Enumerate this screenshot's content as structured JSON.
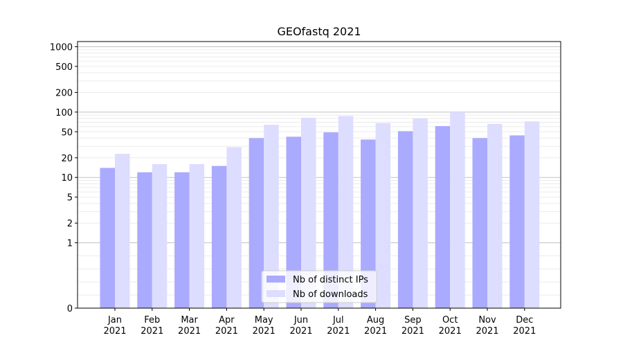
{
  "chart_data": {
    "type": "bar",
    "title": "GEOfastq 2021",
    "xlabel": "",
    "ylabel": "",
    "yscale": "symlog",
    "ylim": [
      0,
      1200
    ],
    "yticks": [
      {
        "value": 0,
        "label": "0"
      },
      {
        "value": 1,
        "label": "1"
      },
      {
        "value": 2,
        "label": "2"
      },
      {
        "value": 5,
        "label": "5"
      },
      {
        "value": 10,
        "label": "10"
      },
      {
        "value": 20,
        "label": "20"
      },
      {
        "value": 50,
        "label": "50"
      },
      {
        "value": 100,
        "label": "100"
      },
      {
        "value": 200,
        "label": "200"
      },
      {
        "value": 500,
        "label": "500"
      },
      {
        "value": 1000,
        "label": "1000"
      }
    ],
    "major_grid_values": [
      1,
      10,
      100,
      1000
    ],
    "categories": [
      {
        "month": "Jan",
        "year": "2021"
      },
      {
        "month": "Feb",
        "year": "2021"
      },
      {
        "month": "Mar",
        "year": "2021"
      },
      {
        "month": "Apr",
        "year": "2021"
      },
      {
        "month": "May",
        "year": "2021"
      },
      {
        "month": "Jun",
        "year": "2021"
      },
      {
        "month": "Jul",
        "year": "2021"
      },
      {
        "month": "Aug",
        "year": "2021"
      },
      {
        "month": "Sep",
        "year": "2021"
      },
      {
        "month": "Oct",
        "year": "2021"
      },
      {
        "month": "Nov",
        "year": "2021"
      },
      {
        "month": "Dec",
        "year": "2021"
      }
    ],
    "series": [
      {
        "name": "Nb of distinct IPs",
        "color": "#aaaaff",
        "values": [
          14,
          12,
          12,
          15,
          40,
          42,
          49,
          38,
          51,
          61,
          40,
          44
        ]
      },
      {
        "name": "Nb of downloads",
        "color": "#ddddff",
        "values": [
          23,
          16,
          16,
          29,
          64,
          82,
          87,
          68,
          80,
          100,
          66,
          72
        ]
      }
    ],
    "legend_position": "bottom-center",
    "grid": true
  }
}
